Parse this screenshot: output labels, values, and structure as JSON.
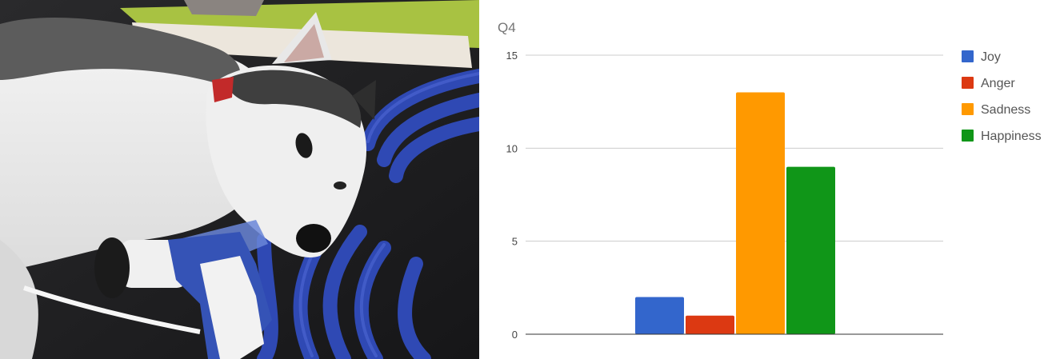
{
  "chart_data": {
    "type": "bar",
    "title": "Q4",
    "xlabel": "",
    "ylabel": "",
    "ylim": [
      0,
      15
    ],
    "yticks": [
      0,
      5,
      10,
      15
    ],
    "grid": true,
    "legend_position": "right",
    "series": [
      {
        "name": "Joy",
        "values": [
          2
        ],
        "color": "#3366cc"
      },
      {
        "name": "Anger",
        "values": [
          1
        ],
        "color": "#dc3912"
      },
      {
        "name": "Sadness",
        "values": [
          13
        ],
        "color": "#ff9900"
      },
      {
        "name": "Happiness",
        "values": [
          9
        ],
        "color": "#109618"
      }
    ]
  }
}
